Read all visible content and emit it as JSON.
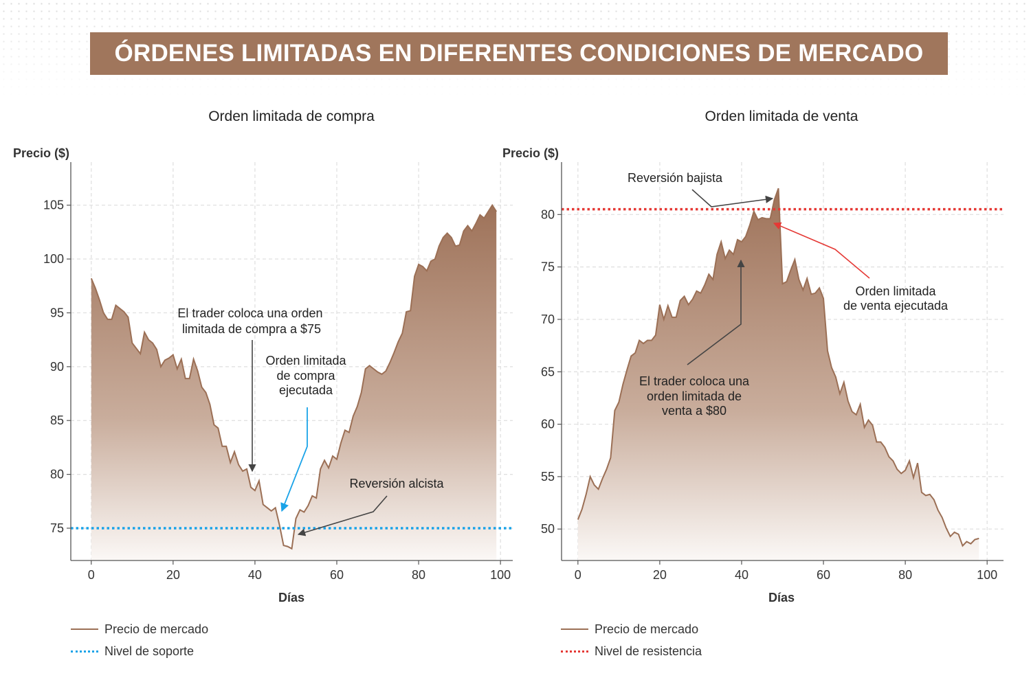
{
  "title": "ÓRDENES LIMITADAS EN DIFERENTES CONDICIONES DE MERCADO",
  "colors": {
    "banner": "#a0765c",
    "price_line": "#9b6f55",
    "support": "#1aa3e8",
    "resistance": "#e53935",
    "grid": "#dddddd",
    "annotation_arrow": "#444444"
  },
  "chart_data": [
    {
      "type": "area",
      "title": "Orden limitada de compra",
      "xlabel": "Días",
      "ylabel": "Precio ($)",
      "xlim": [
        -5,
        103
      ],
      "ylim": [
        72,
        109
      ],
      "xticks": [
        0,
        20,
        40,
        60,
        80,
        100
      ],
      "yticks": [
        75,
        80,
        85,
        90,
        95,
        100,
        105
      ],
      "grid": true,
      "legend": [
        "Precio de mercado",
        "Nivel de soporte"
      ],
      "legend_position": "bottom-left",
      "series": [
        {
          "name": "Precio de mercado",
          "x": [
            0,
            1,
            2,
            3,
            4,
            5,
            6,
            7,
            8,
            9,
            10,
            11,
            12,
            13,
            14,
            15,
            16,
            17,
            18,
            19,
            20,
            21,
            22,
            23,
            24,
            25,
            26,
            27,
            28,
            29,
            30,
            31,
            32,
            33,
            34,
            35,
            36,
            37,
            38,
            39,
            40,
            41,
            42,
            43,
            44,
            45,
            46,
            47,
            48,
            49,
            50,
            51,
            52,
            53,
            54,
            55,
            56,
            57,
            58,
            59,
            60,
            61,
            62,
            63,
            64,
            65,
            66,
            67,
            68,
            69,
            70,
            71,
            72,
            73,
            74,
            75,
            76,
            77,
            78,
            79,
            80,
            81,
            82,
            83,
            84,
            85,
            86,
            87,
            88,
            89,
            90,
            91,
            92,
            93,
            94,
            95,
            96,
            97,
            98,
            99
          ],
          "y": [
            98.2,
            97.3,
            96.2,
            95.0,
            94.4,
            94.4,
            95.7,
            95.4,
            95.1,
            94.6,
            92.2,
            91.7,
            91.2,
            93.2,
            92.5,
            92.2,
            91.6,
            90.0,
            90.6,
            90.8,
            91.1,
            89.8,
            90.7,
            88.9,
            88.9,
            90.7,
            89.6,
            88.1,
            87.6,
            86.5,
            84.6,
            84.3,
            82.6,
            82.6,
            81.1,
            82.1,
            80.9,
            80.3,
            80.5,
            78.8,
            78.5,
            79.4,
            77.2,
            76.9,
            76.6,
            76.9,
            75.3,
            73.4,
            73.3,
            73.1,
            75.9,
            76.7,
            76.5,
            77.1,
            78.0,
            77.8,
            80.5,
            81.3,
            80.6,
            81.7,
            81.4,
            82.9,
            84.1,
            83.9,
            85.4,
            86.3,
            87.6,
            89.8,
            90.1,
            89.8,
            89.5,
            89.3,
            89.6,
            90.4,
            91.3,
            92.3,
            93.1,
            95.1,
            95.2,
            98.4,
            99.5,
            99.3,
            98.9,
            99.8,
            100.0,
            101.2,
            102.0,
            102.4,
            102.0,
            101.2,
            101.3,
            102.6,
            103.1,
            102.6,
            103.3,
            104.1,
            103.8,
            104.4,
            105.0,
            104.4
          ]
        },
        {
          "name": "Nivel de soporte",
          "y": 75
        }
      ],
      "annotations": [
        {
          "text_lines": [
            "El trader coloca una orden",
            "limitada de compra a $75"
          ]
        },
        {
          "text_lines": [
            "Orden limitada",
            "de compra",
            "ejecutada"
          ]
        },
        {
          "text_lines": [
            "Reversión alcista"
          ]
        }
      ]
    },
    {
      "type": "area",
      "title": "Orden limitada de venta",
      "xlabel": "Días",
      "ylabel": "Precio ($)",
      "xlim": [
        -4,
        104
      ],
      "ylim": [
        47,
        85
      ],
      "xticks": [
        0,
        20,
        40,
        60,
        80,
        100
      ],
      "yticks": [
        50,
        55,
        60,
        65,
        70,
        75,
        80
      ],
      "grid": true,
      "legend": [
        "Precio de mercado",
        "Nivel de resistencia"
      ],
      "legend_position": "bottom-left",
      "series": [
        {
          "name": "Precio de mercado",
          "x": [
            0,
            1,
            2,
            3,
            4,
            5,
            6,
            7,
            8,
            9,
            10,
            11,
            12,
            13,
            14,
            15,
            16,
            17,
            18,
            19,
            20,
            21,
            22,
            23,
            24,
            25,
            26,
            27,
            28,
            29,
            30,
            31,
            32,
            33,
            34,
            35,
            36,
            37,
            38,
            39,
            40,
            41,
            42,
            43,
            44,
            45,
            46,
            47,
            48,
            49,
            50,
            51,
            52,
            53,
            54,
            55,
            56,
            57,
            58,
            59,
            60,
            61,
            62,
            63,
            64,
            65,
            66,
            67,
            68,
            69,
            70,
            71,
            72,
            73,
            74,
            75,
            76,
            77,
            78,
            79,
            80,
            81,
            82,
            83,
            84,
            85,
            86,
            87,
            88,
            89,
            90,
            91,
            92,
            93,
            94,
            95,
            96,
            97,
            98,
            99
          ],
          "y": [
            50.9,
            51.9,
            53.3,
            55.0,
            54.2,
            53.8,
            54.8,
            55.7,
            56.8,
            61.3,
            62.1,
            63.8,
            65.2,
            66.5,
            66.8,
            68.0,
            67.7,
            68.0,
            68.0,
            68.5,
            71.4,
            70.0,
            71.3,
            70.2,
            70.2,
            71.8,
            72.2,
            71.4,
            71.9,
            72.7,
            72.5,
            73.3,
            74.3,
            73.8,
            76.2,
            77.4,
            75.8,
            76.6,
            76.2,
            77.6,
            77.4,
            77.9,
            79.0,
            80.3,
            79.5,
            79.7,
            79.6,
            79.6,
            81.4,
            82.5,
            73.4,
            73.6,
            74.7,
            75.7,
            73.8,
            72.8,
            73.9,
            72.4,
            72.5,
            73.0,
            72.0,
            67.0,
            65.4,
            64.5,
            62.9,
            64.0,
            62.2,
            61.2,
            60.9,
            61.9,
            59.7,
            60.4,
            59.9,
            58.3,
            58.3,
            57.8,
            56.9,
            56.5,
            55.7,
            55.3,
            55.6,
            56.5,
            54.9,
            56.3,
            53.5,
            53.2,
            53.3,
            52.8,
            51.8,
            51.1,
            50.1,
            49.3,
            49.7,
            49.5,
            48.4,
            48.8,
            48.6,
            49.0,
            49.1,
            null
          ]
        },
        {
          "name": "Nivel de resistencia",
          "y": 80.5
        }
      ],
      "annotations": [
        {
          "text_lines": [
            "Reversión bajista"
          ]
        },
        {
          "text_lines": [
            "Orden limitada",
            "de venta ejecutada"
          ]
        },
        {
          "text_lines": [
            "El trader coloca una",
            "orden limitada de",
            "venta a $80"
          ]
        }
      ]
    }
  ]
}
